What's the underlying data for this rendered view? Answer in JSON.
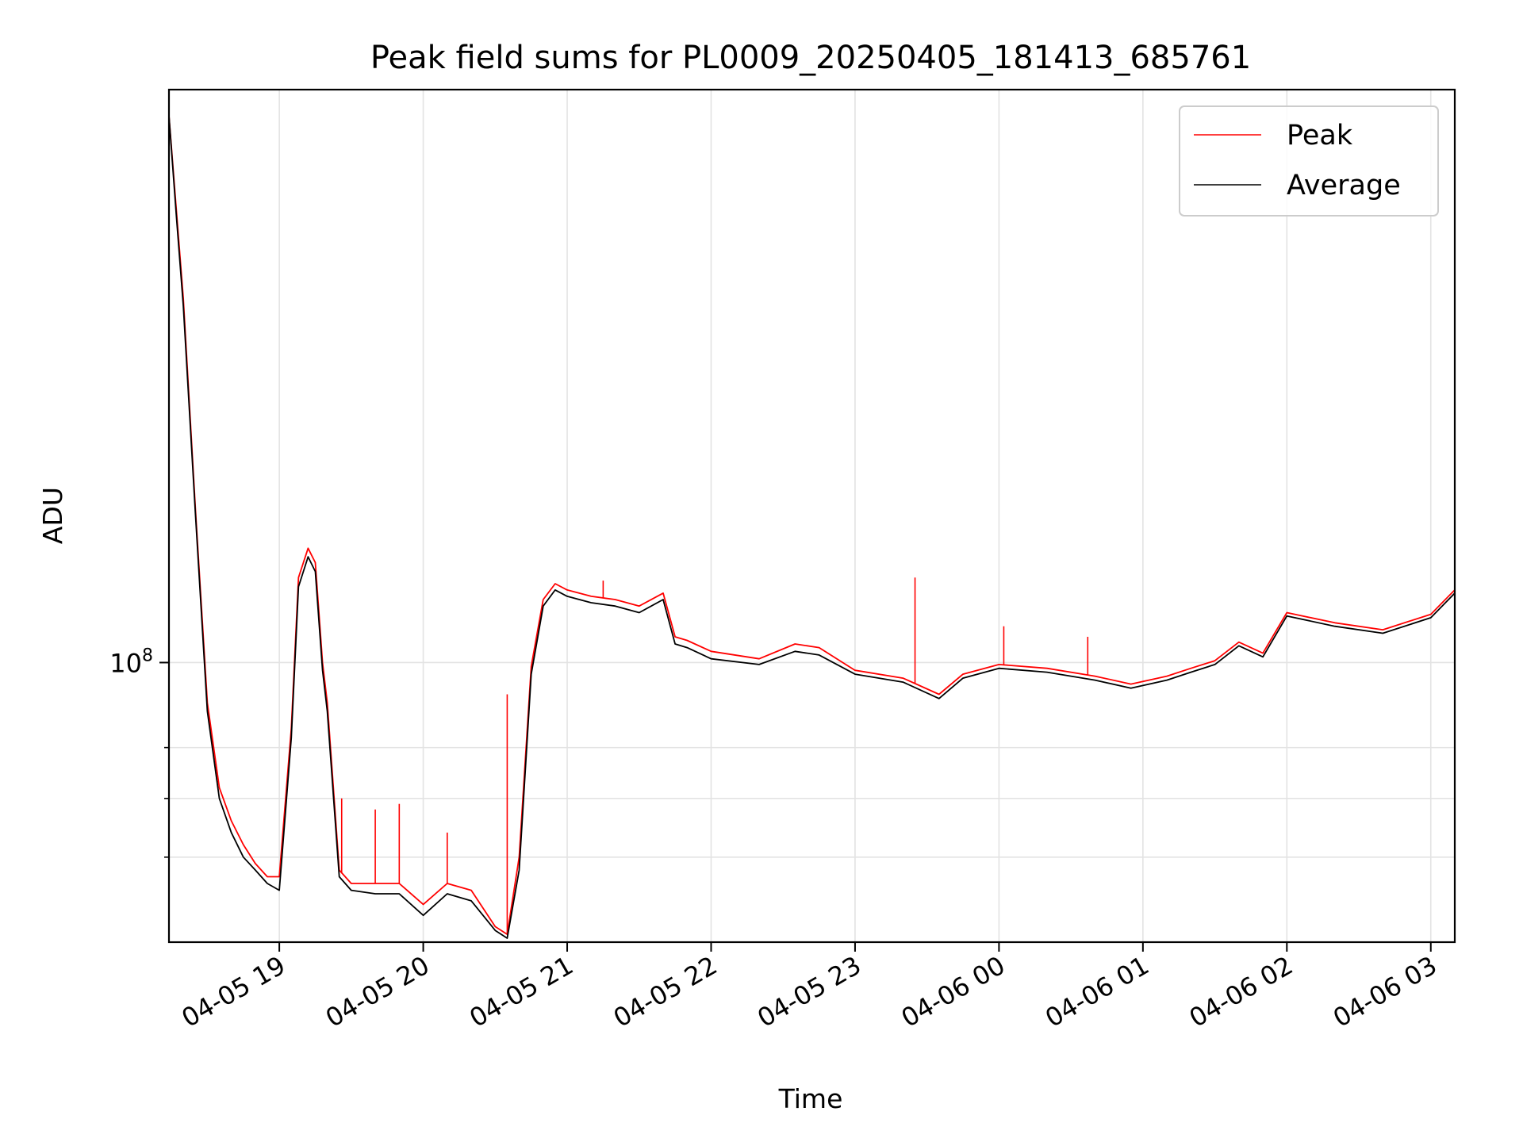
{
  "chart_data": {
    "type": "line",
    "title": "Peak field sums for PL0009_20250405_181413_685761",
    "xlabel": "Time",
    "ylabel": "ADU",
    "x_axis_type": "datetime",
    "xlim": [
      "2025-04-05 18:14",
      "2025-04-06 03:10"
    ],
    "ylim": [
      48000000,
      450000000
    ],
    "y_scale": "log",
    "grid": true,
    "legend_position": "top-right",
    "x_ticks": [
      "04-05 19",
      "04-05 20",
      "04-05 21",
      "04-05 22",
      "04-05 23",
      "04-06 00",
      "04-06 01",
      "04-06 02",
      "04-06 03"
    ],
    "y_tick_major": {
      "value": 100000000,
      "base": "10",
      "exponent": "8"
    },
    "y_tick_minor": [
      60000000,
      70000000,
      80000000
    ],
    "series": [
      {
        "name": "Peak",
        "color": "#ff0000",
        "x": [
          "2025-04-05 18:14",
          "2025-04-05 18:17",
          "2025-04-05 18:20",
          "2025-04-05 18:25",
          "2025-04-05 18:30",
          "2025-04-05 18:35",
          "2025-04-05 18:40",
          "2025-04-05 18:45",
          "2025-04-05 18:50",
          "2025-04-05 18:55",
          "2025-04-05 19:00",
          "2025-04-05 19:05",
          "2025-04-05 19:08",
          "2025-04-05 19:12",
          "2025-04-05 19:15",
          "2025-04-05 19:18",
          "2025-04-05 19:20",
          "2025-04-05 19:25",
          "2025-04-05 19:30",
          "2025-04-05 19:40",
          "2025-04-05 19:50",
          "2025-04-05 20:00",
          "2025-04-05 20:10",
          "2025-04-05 20:20",
          "2025-04-05 20:30",
          "2025-04-05 20:35",
          "2025-04-05 20:40",
          "2025-04-05 20:45",
          "2025-04-05 20:50",
          "2025-04-05 20:55",
          "2025-04-05 21:00",
          "2025-04-05 21:10",
          "2025-04-05 21:20",
          "2025-04-05 21:30",
          "2025-04-05 21:40",
          "2025-04-05 21:45",
          "2025-04-05 21:50",
          "2025-04-05 22:00",
          "2025-04-05 22:20",
          "2025-04-05 22:35",
          "2025-04-05 22:45",
          "2025-04-05 23:00",
          "2025-04-05 23:20",
          "2025-04-05 23:35",
          "2025-04-05 23:45",
          "2025-04-06 00:00",
          "2025-04-06 00:20",
          "2025-04-06 00:40",
          "2025-04-06 00:55",
          "2025-04-06 01:10",
          "2025-04-06 01:20",
          "2025-04-06 01:30",
          "2025-04-06 01:40",
          "2025-04-06 01:50",
          "2025-04-06 02:00",
          "2025-04-06 02:20",
          "2025-04-06 02:40",
          "2025-04-06 03:00",
          "2025-04-06 03:10"
        ],
        "values": [
          420000000,
          330000000,
          260000000,
          150000000,
          90000000,
          72000000,
          66000000,
          62000000,
          59000000,
          57000000,
          57000000,
          84000000,
          125000000,
          135000000,
          130000000,
          100000000,
          90000000,
          58000000,
          56000000,
          56000000,
          56000000,
          53000000,
          56000000,
          55000000,
          50000000,
          49000000,
          60000000,
          99000000,
          118000000,
          123000000,
          121000000,
          119000000,
          118000000,
          116000000,
          120000000,
          107000000,
          106000000,
          103000000,
          101000000,
          105000000,
          104000000,
          98000000,
          96000000,
          92000000,
          97000000,
          99500000,
          98500000,
          96500000,
          94500000,
          96500000,
          98500000,
          100500000,
          105500000,
          102500000,
          114000000,
          111000000,
          109000000,
          113500000,
          121000000
        ],
        "spikes": [
          {
            "x": "2025-04-05 19:05",
            "y": 82000000
          },
          {
            "x": "2025-04-05 19:12",
            "y": 135000000
          },
          {
            "x": "2025-04-05 19:26",
            "y": 70000000
          },
          {
            "x": "2025-04-05 19:40",
            "y": 68000000
          },
          {
            "x": "2025-04-05 19:50",
            "y": 69000000
          },
          {
            "x": "2025-04-05 20:10",
            "y": 64000000
          },
          {
            "x": "2025-04-05 20:35",
            "y": 92000000
          },
          {
            "x": "2025-04-05 21:15",
            "y": 124000000
          },
          {
            "x": "2025-04-05 23:25",
            "y": 125000000
          },
          {
            "x": "2025-04-06 00:02",
            "y": 110000000
          },
          {
            "x": "2025-04-06 00:37",
            "y": 107000000
          }
        ]
      },
      {
        "name": "Average",
        "color": "#000000",
        "x": [
          "2025-04-05 18:14",
          "2025-04-05 18:17",
          "2025-04-05 18:20",
          "2025-04-05 18:25",
          "2025-04-05 18:30",
          "2025-04-05 18:35",
          "2025-04-05 18:40",
          "2025-04-05 18:45",
          "2025-04-05 18:50",
          "2025-04-05 18:55",
          "2025-04-05 19:00",
          "2025-04-05 19:05",
          "2025-04-05 19:08",
          "2025-04-05 19:12",
          "2025-04-05 19:15",
          "2025-04-05 19:18",
          "2025-04-05 19:20",
          "2025-04-05 19:25",
          "2025-04-05 19:30",
          "2025-04-05 19:40",
          "2025-04-05 19:50",
          "2025-04-05 20:00",
          "2025-04-05 20:10",
          "2025-04-05 20:20",
          "2025-04-05 20:30",
          "2025-04-05 20:35",
          "2025-04-05 20:40",
          "2025-04-05 20:45",
          "2025-04-05 20:50",
          "2025-04-05 20:55",
          "2025-04-05 21:00",
          "2025-04-05 21:10",
          "2025-04-05 21:20",
          "2025-04-05 21:30",
          "2025-04-05 21:40",
          "2025-04-05 21:45",
          "2025-04-05 21:50",
          "2025-04-05 22:00",
          "2025-04-05 22:20",
          "2025-04-05 22:35",
          "2025-04-05 22:45",
          "2025-04-05 23:00",
          "2025-04-05 23:20",
          "2025-04-05 23:35",
          "2025-04-05 23:45",
          "2025-04-06 00:00",
          "2025-04-06 00:20",
          "2025-04-06 00:40",
          "2025-04-06 00:55",
          "2025-04-06 01:10",
          "2025-04-06 01:20",
          "2025-04-06 01:30",
          "2025-04-06 01:40",
          "2025-04-06 01:50",
          "2025-04-06 02:00",
          "2025-04-06 02:20",
          "2025-04-06 02:40",
          "2025-04-06 03:00",
          "2025-04-06 03:10"
        ],
        "values": [
          420000000,
          325000000,
          255000000,
          148000000,
          88000000,
          70000000,
          64000000,
          60000000,
          58000000,
          56000000,
          55000000,
          82000000,
          122000000,
          132000000,
          127000000,
          98000000,
          88000000,
          57000000,
          55000000,
          54500000,
          54500000,
          51500000,
          54500000,
          53500000,
          49500000,
          48500000,
          58000000,
          97000000,
          116000000,
          121000000,
          119000000,
          117000000,
          116000000,
          114000000,
          118000000,
          105000000,
          104000000,
          101000000,
          99500000,
          103000000,
          102000000,
          97000000,
          95000000,
          91000000,
          96000000,
          98500000,
          97500000,
          95500000,
          93500000,
          95500000,
          97500000,
          99500000,
          104500000,
          101500000,
          113000000,
          110000000,
          108000000,
          112500000,
          120000000
        ]
      }
    ]
  }
}
